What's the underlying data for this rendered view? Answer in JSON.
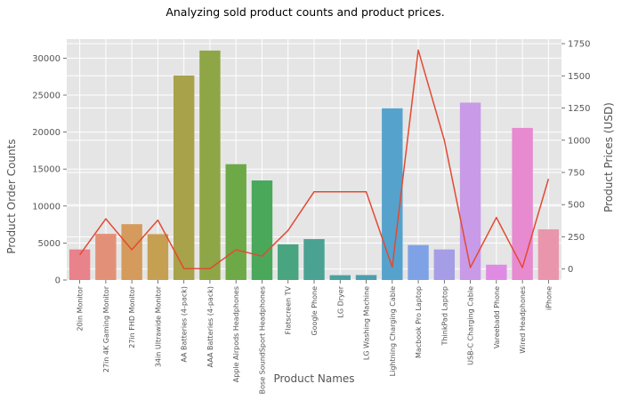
{
  "chart_data": {
    "type": "bar",
    "title": "Analyzing sold product counts and product prices.",
    "xlabel": "Product Names",
    "ylabel": "Product Order Counts",
    "y2label": "Product Prices (USD)",
    "categories": [
      "20in Monitor",
      "27in 4K Gaming Monitor",
      "27in FHD Monitor",
      "34in Ultrawide Monitor",
      "AA Batteries (4-pack)",
      "AAA Batteries (4-pack)",
      "Apple Airpods Headphones",
      "Bose SoundSport Headphones",
      "Flatscreen TV",
      "Google Phone",
      "LG Dryer",
      "LG Washing Machine",
      "Lightning Charging Cable",
      "Macbook Pro Laptop",
      "ThinkPad Laptop",
      "USB-C Charging Cable",
      "Vareebadd Phone",
      "Wired Headphones",
      "iPhone"
    ],
    "series": [
      {
        "axis": "left",
        "type": "bar",
        "values": [
          4130,
          6240,
          7550,
          6200,
          27640,
          31020,
          15660,
          13460,
          4820,
          5530,
          650,
          670,
          23220,
          4730,
          4130,
          23980,
          2070,
          20560,
          6850
        ],
        "colors": [
          "#e8828b",
          "#e29178",
          "#d49b5c",
          "#c5a052",
          "#a8a24a",
          "#8ea645",
          "#6ea947",
          "#4aa85b",
          "#49a57f",
          "#4aa292",
          "#4ba19f",
          "#4c9fae",
          "#55a2cd",
          "#7fa2e6",
          "#a59de6",
          "#c99ae7",
          "#e08be3",
          "#e78ad0",
          "#e996ad"
        ]
      },
      {
        "axis": "right",
        "type": "line",
        "color": "#e24a33",
        "values": [
          109.99,
          389.99,
          149.99,
          379.99,
          3.84,
          2.99,
          150,
          99.99,
          300,
          600,
          600,
          600,
          14.95,
          1700,
          999.99,
          11.95,
          400,
          11.99,
          700
        ]
      }
    ],
    "ylim": [
      0,
      32570
    ],
    "yticks": [
      0,
      5000,
      10000,
      15000,
      20000,
      25000,
      30000
    ],
    "y2lim": [
      -85,
      1785
    ],
    "y2ticks": [
      0,
      250,
      500,
      750,
      1000,
      1250,
      1500,
      1750
    ],
    "grid": true,
    "legend": "none"
  }
}
